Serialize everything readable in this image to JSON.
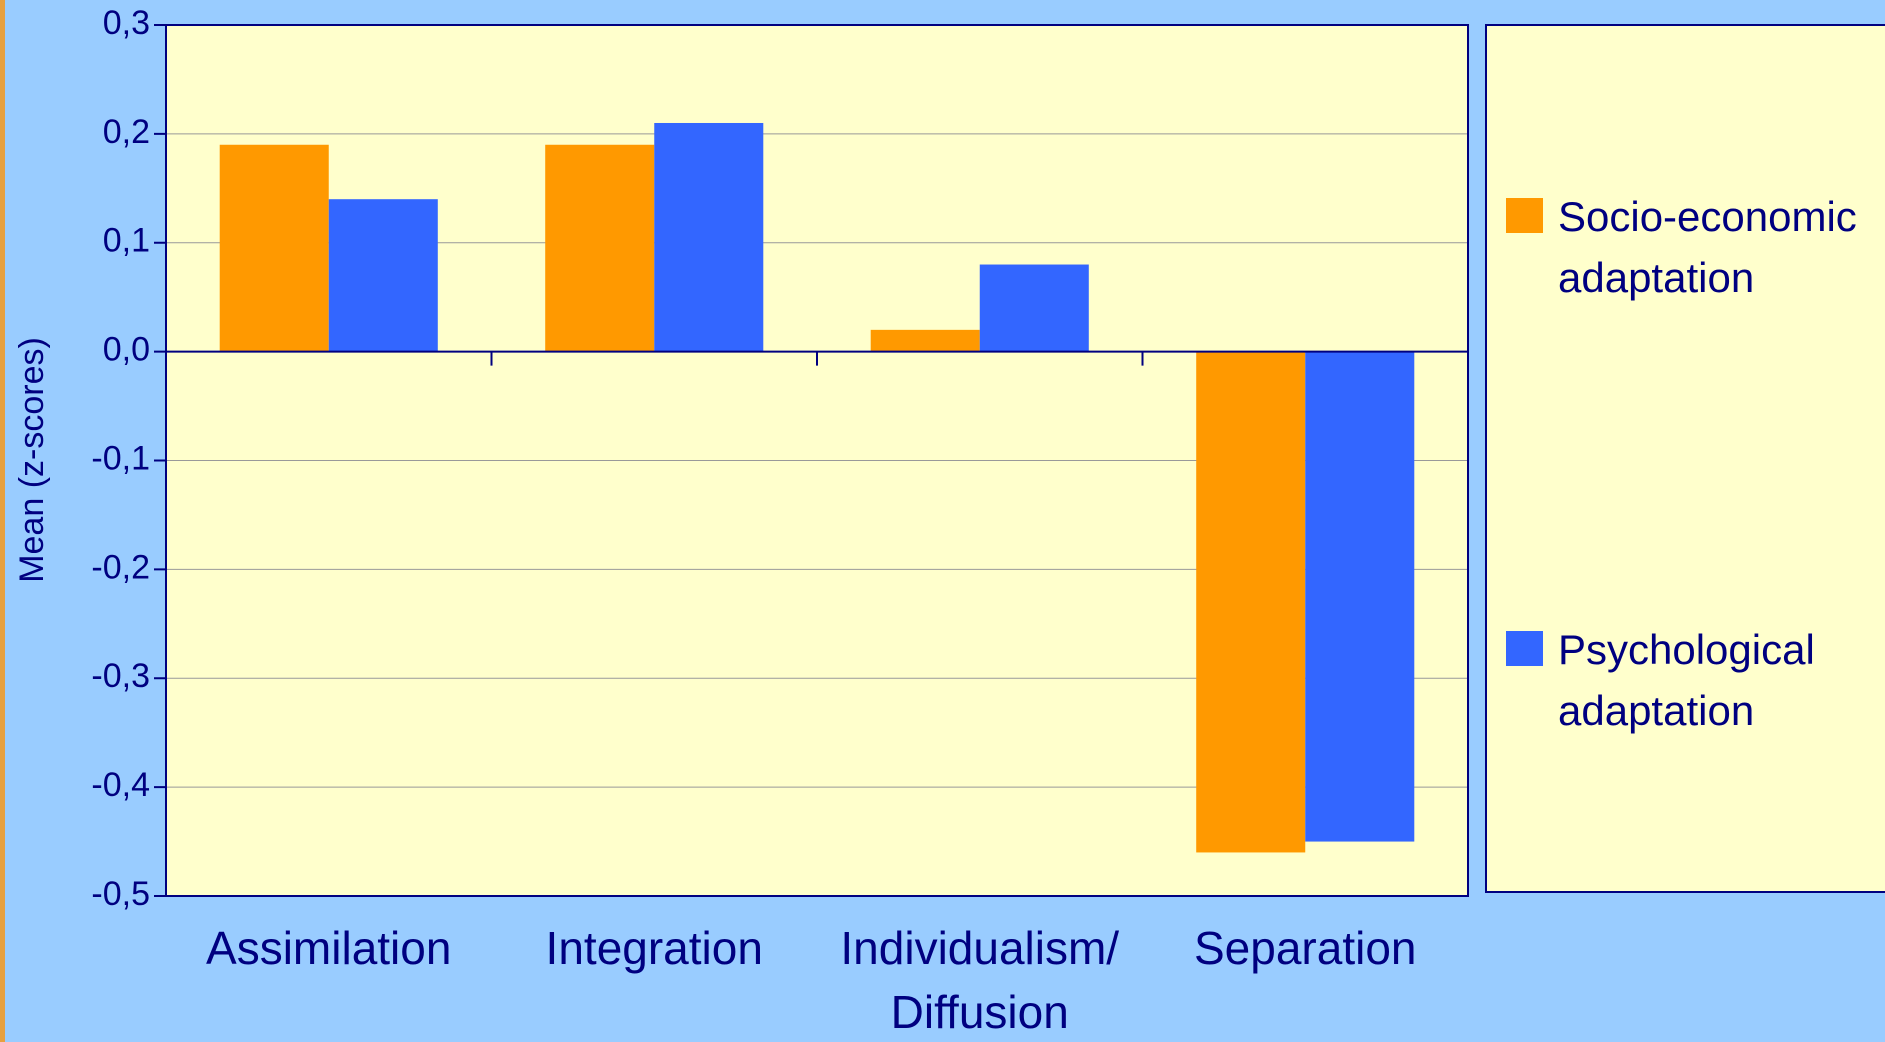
{
  "chart_data": {
    "type": "bar",
    "y_label": "Mean (z-scores)",
    "categories": [
      "Assimilation",
      "Integration",
      "Individualism/ Diffusion",
      "Separation"
    ],
    "series": [
      {
        "name": "Socio-economic adaptation",
        "color": "#ff9900",
        "values": [
          0.19,
          0.19,
          0.02,
          -0.46
        ]
      },
      {
        "name": "Psychological adaptation",
        "color": "#3366ff",
        "values": [
          0.14,
          0.21,
          0.08,
          -0.45
        ]
      }
    ],
    "ylim": [
      -0.5,
      0.3
    ],
    "yticks": [
      {
        "value": -0.5,
        "label": "-0,5"
      },
      {
        "value": -0.4,
        "label": "-0,4"
      },
      {
        "value": -0.3,
        "label": "-0,3"
      },
      {
        "value": -0.2,
        "label": "-0,2"
      },
      {
        "value": -0.1,
        "label": "-0,1"
      },
      {
        "value": 0,
        "label": "0,0"
      },
      {
        "value": 0.1,
        "label": "0,1"
      },
      {
        "value": 0.2,
        "label": "0,2"
      },
      {
        "value": 0.3,
        "label": "0,3"
      }
    ],
    "grid": true,
    "legend": "right"
  }
}
